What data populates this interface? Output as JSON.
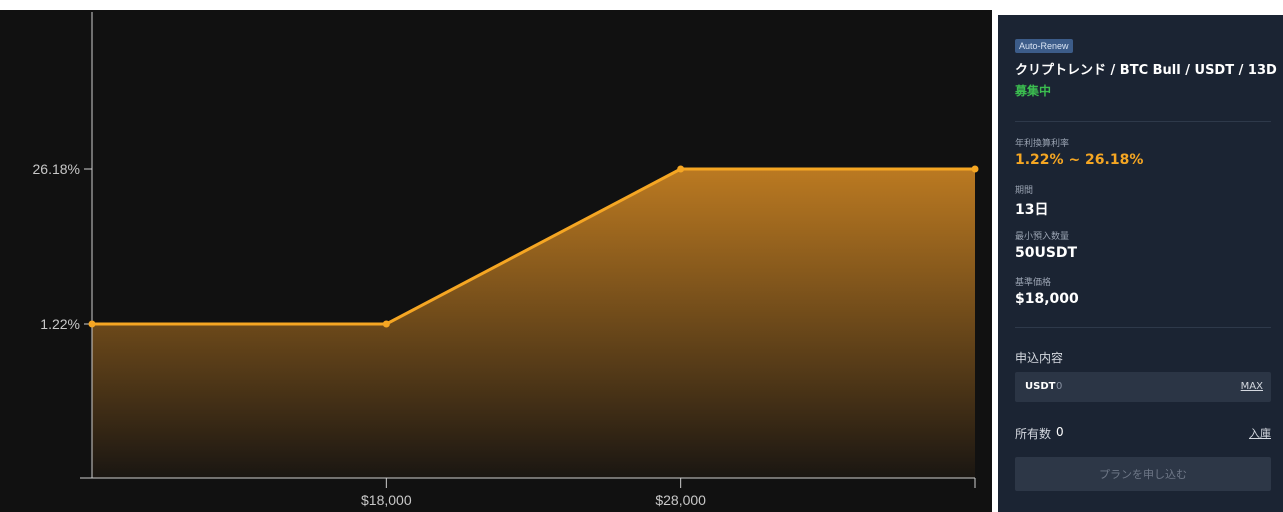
{
  "product": {
    "badge": "Auto-Renew",
    "title": "クリプトレンド / BTC Bull / USDT / 13D",
    "status": "募集中"
  },
  "details": {
    "apr_label": "年利換算利率",
    "apr_value": "1.22% ~ 26.18%",
    "period_label": "期間",
    "period_value": "13日",
    "min_label": "最小預入数量",
    "min_value": "50USDT",
    "strike_label": "基準価格",
    "strike_value": "$18,000"
  },
  "subscription": {
    "section_title": "申込内容",
    "currency": "USDT",
    "amount": "0",
    "max_label": "MAX",
    "holdings_label": "所有数",
    "holdings_value": "0",
    "deposit_label": "入庫",
    "apply_label": "プランを申し込む"
  },
  "colors": {
    "accent": "#f5a623",
    "status_green": "#3bbd4f",
    "panel_bg": "#1b2433",
    "chart_bg": "#111111"
  },
  "chart_data": {
    "type": "area",
    "x_ticks": [
      "$18,000",
      "$28,000"
    ],
    "y_ticks": [
      "26.18%",
      "1.22%"
    ],
    "series": [
      {
        "points": [
          {
            "x": 8000,
            "y": 1.22
          },
          {
            "x": 18000,
            "y": 1.22
          },
          {
            "x": 28000,
            "y": 26.18
          },
          {
            "x": 38000,
            "y": 26.18
          }
        ]
      }
    ]
  }
}
